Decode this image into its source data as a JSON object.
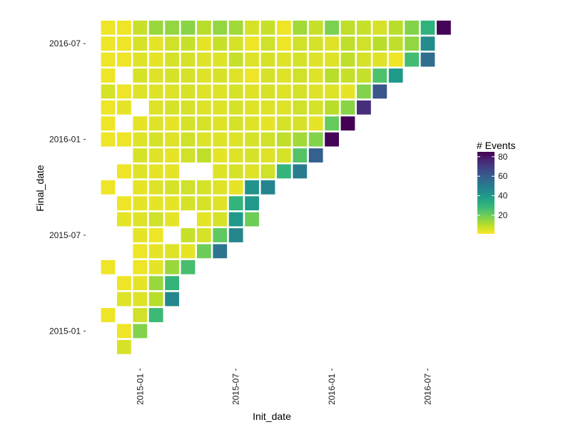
{
  "chart_data": {
    "type": "heatmap",
    "xlabel": "Init_date",
    "ylabel": "Final_date",
    "x_ticks": [
      "2015-01",
      "2015-07",
      "2016-01",
      "2016-07"
    ],
    "y_ticks": [
      "2015-01",
      "2015-07",
      "2016-01",
      "2016-07"
    ],
    "x_months": [
      "2014-11",
      "2014-12",
      "2015-01",
      "2015-02",
      "2015-03",
      "2015-04",
      "2015-05",
      "2015-06",
      "2015-07",
      "2015-08",
      "2015-09",
      "2015-10",
      "2015-11",
      "2015-12",
      "2016-01",
      "2016-02",
      "2016-03",
      "2016-04",
      "2016-05",
      "2016-06",
      "2016-07",
      "2016-08"
    ],
    "y_months": [
      "2014-12",
      "2015-01",
      "2015-02",
      "2015-03",
      "2015-04",
      "2015-05",
      "2015-06",
      "2015-07",
      "2015-08",
      "2015-09",
      "2015-10",
      "2015-11",
      "2015-12",
      "2016-01",
      "2016-02",
      "2016-03",
      "2016-04",
      "2016-05",
      "2016-06",
      "2016-07",
      "2016-08"
    ],
    "rows": [
      {
        "final": "2016-08",
        "values": [
          3,
          3,
          8,
          14,
          15,
          16,
          10,
          15,
          13,
          6,
          8,
          3,
          13,
          8,
          18,
          9,
          8,
          6,
          10,
          17,
          31,
          84
        ]
      },
      {
        "final": "2016-07",
        "values": [
          3,
          3,
          6,
          4,
          7,
          8,
          4,
          8,
          6,
          3,
          7,
          3,
          7,
          6,
          5,
          9,
          7,
          10,
          9,
          15,
          44,
          null
        ]
      },
      {
        "final": "2016-06",
        "values": [
          3,
          3,
          5,
          4,
          6,
          6,
          5,
          5,
          8,
          5,
          6,
          5,
          6,
          5,
          5,
          9,
          6,
          5,
          3,
          27,
          55,
          null
        ]
      },
      {
        "final": "2016-05",
        "values": [
          3,
          null,
          6,
          5,
          6,
          6,
          5,
          6,
          5,
          3,
          6,
          5,
          7,
          5,
          10,
          8,
          8,
          25,
          40,
          null,
          null,
          null
        ]
      },
      {
        "final": "2016-04",
        "values": [
          6,
          3,
          5,
          5,
          5,
          6,
          5,
          5,
          6,
          5,
          6,
          5,
          6,
          5,
          5,
          4,
          17,
          62,
          null,
          null,
          null,
          null
        ]
      },
      {
        "final": "2016-03",
        "values": [
          3,
          4,
          null,
          5,
          6,
          6,
          5,
          5,
          6,
          5,
          5,
          5,
          7,
          6,
          10,
          16,
          74,
          null,
          null,
          null,
          null,
          null
        ]
      },
      {
        "final": "2016-02",
        "values": [
          3,
          null,
          4,
          5,
          4,
          6,
          6,
          5,
          6,
          5,
          4,
          6,
          6,
          4,
          21,
          85,
          null,
          null,
          null,
          null,
          null,
          null
        ]
      },
      {
        "final": "2016-01",
        "values": [
          3,
          3,
          5,
          6,
          5,
          7,
          5,
          5,
          5,
          6,
          7,
          9,
          13,
          17,
          84,
          null,
          null,
          null,
          null,
          null,
          null,
          null
        ]
      },
      {
        "final": "2015-12",
        "values": [
          null,
          null,
          6,
          5,
          4,
          7,
          9,
          4,
          5,
          6,
          5,
          6,
          24,
          59,
          null,
          null,
          null,
          null,
          null,
          null,
          null,
          null
        ]
      },
      {
        "final": "2015-11",
        "values": [
          null,
          3,
          5,
          4,
          4,
          null,
          null,
          5,
          6,
          5,
          7,
          30,
          50,
          null,
          null,
          null,
          null,
          null,
          null,
          null,
          null,
          null
        ]
      },
      {
        "final": "2015-10",
        "values": [
          3,
          null,
          4,
          5,
          6,
          7,
          6,
          5,
          4,
          42,
          47,
          null,
          null,
          null,
          null,
          null,
          null,
          null,
          null,
          null,
          null,
          null
        ]
      },
      {
        "final": "2015-09",
        "values": [
          null,
          3,
          4,
          4,
          4,
          6,
          6,
          5,
          30,
          40,
          null,
          null,
          null,
          null,
          null,
          null,
          null,
          null,
          null,
          null,
          null,
          null
        ]
      },
      {
        "final": "2015-08",
        "values": [
          null,
          4,
          5,
          7,
          4,
          null,
          4,
          6,
          40,
          20,
          null,
          null,
          null,
          null,
          null,
          null,
          null,
          null,
          null,
          null,
          null,
          null
        ]
      },
      {
        "final": "2015-07",
        "values": [
          null,
          null,
          4,
          3,
          null,
          8,
          6,
          22,
          46,
          null,
          null,
          null,
          null,
          null,
          null,
          null,
          null,
          null,
          null,
          null,
          null,
          null
        ]
      },
      {
        "final": "2015-06",
        "values": [
          null,
          null,
          3,
          4,
          5,
          4,
          20,
          52,
          null,
          null,
          null,
          null,
          null,
          null,
          null,
          null,
          null,
          null,
          null,
          null,
          null,
          null
        ]
      },
      {
        "final": "2015-05",
        "values": [
          3,
          null,
          3,
          4,
          14,
          26,
          null,
          null,
          null,
          null,
          null,
          null,
          null,
          null,
          null,
          null,
          null,
          null,
          null,
          null,
          null,
          null
        ]
      },
      {
        "final": "2015-04",
        "values": [
          null,
          3,
          4,
          14,
          30,
          null,
          null,
          null,
          null,
          null,
          null,
          null,
          null,
          null,
          null,
          null,
          null,
          null,
          null,
          null,
          null,
          null
        ]
      },
      {
        "final": "2015-03",
        "values": [
          null,
          5,
          5,
          10,
          46,
          null,
          null,
          null,
          null,
          null,
          null,
          null,
          null,
          null,
          null,
          null,
          null,
          null,
          null,
          null,
          null,
          null
        ]
      },
      {
        "final": "2015-02",
        "values": [
          3,
          null,
          7,
          28,
          null,
          null,
          null,
          null,
          null,
          null,
          null,
          null,
          null,
          null,
          null,
          null,
          null,
          null,
          null,
          null,
          null,
          null
        ]
      },
      {
        "final": "2015-01",
        "values": [
          null,
          3,
          17,
          null,
          null,
          null,
          null,
          null,
          null,
          null,
          null,
          null,
          null,
          null,
          null,
          null,
          null,
          null,
          null,
          null,
          null,
          null
        ]
      },
      {
        "final": "2014-12",
        "values": [
          null,
          6,
          null,
          null,
          null,
          null,
          null,
          null,
          null,
          null,
          null,
          null,
          null,
          null,
          null,
          null,
          null,
          null,
          null,
          null,
          null,
          null
        ]
      }
    ],
    "legend": {
      "title": "# Events",
      "ticks": [
        20,
        40,
        60,
        80
      ],
      "range": [
        1,
        85
      ],
      "colors": [
        "#fde725",
        "#b5de2b",
        "#6ece58",
        "#35b779",
        "#1f9e89",
        "#26828e",
        "#31688e",
        "#3e4989",
        "#482878",
        "#440154"
      ],
      "placement": "right"
    },
    "grid": false
  }
}
